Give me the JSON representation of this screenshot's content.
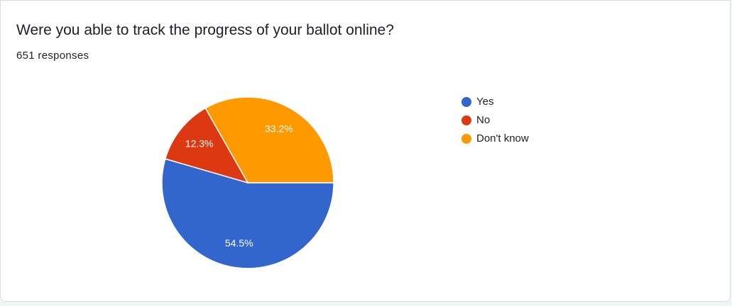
{
  "chart_data": {
    "type": "pie",
    "title": "Were you able to track the progress of your ballot online?",
    "subtitle": "651 responses",
    "categories": [
      "Yes",
      "No",
      "Don't know"
    ],
    "values": [
      54.5,
      12.3,
      33.2
    ],
    "value_labels": [
      "54.5%",
      "12.3%",
      "33.2%"
    ],
    "colors": [
      "#3366cc",
      "#dc3912",
      "#ff9900"
    ],
    "legend": "right"
  }
}
